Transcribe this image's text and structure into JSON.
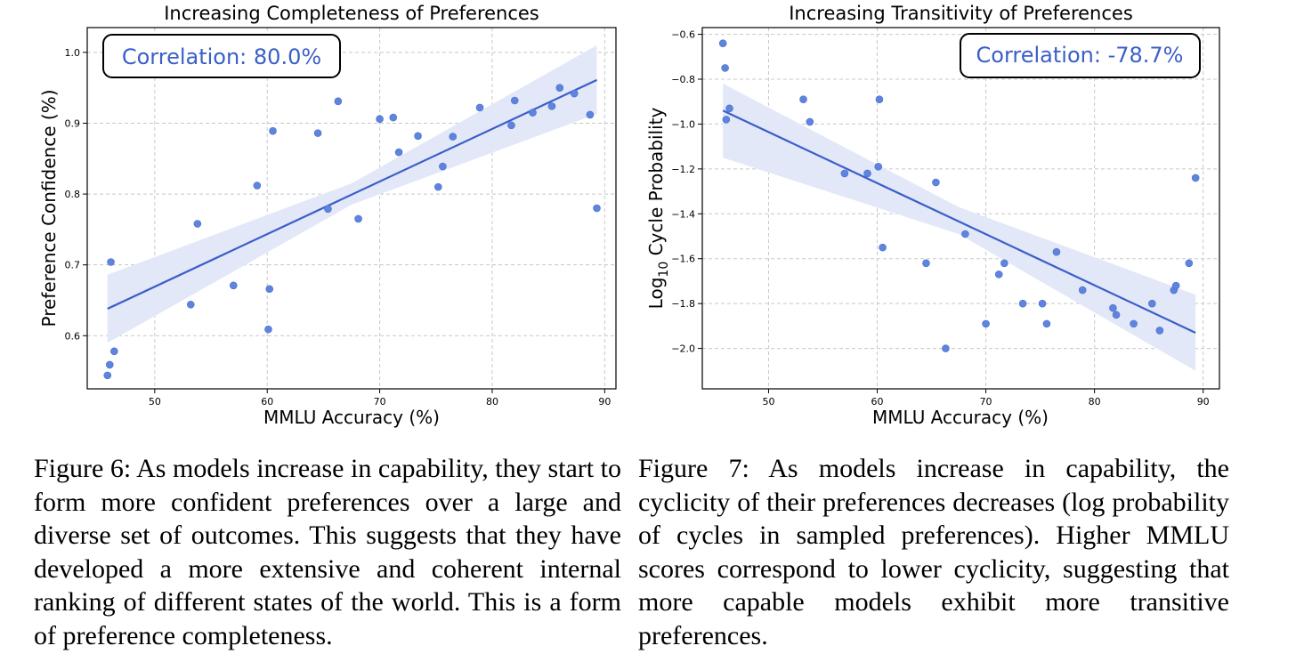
{
  "chart_data": [
    {
      "type": "scatter",
      "title": "Increasing Completeness of Preferences",
      "xlabel": "MMLU Accuracy (%)",
      "ylabel": "Preference Confidence (%)",
      "annotation": "Correlation: 80.0%",
      "xlim": [
        44,
        91
      ],
      "ylim": [
        0.525,
        1.035
      ],
      "xticks": [
        50,
        60,
        70,
        80,
        90
      ],
      "yticks": [
        0.6,
        0.7,
        0.8,
        0.9,
        1.0
      ],
      "xtick_labels": [
        "50",
        "60",
        "70",
        "80",
        "90"
      ],
      "ytick_labels": [
        "0.6",
        "0.7",
        "0.8",
        "0.9",
        "1.0"
      ],
      "grid": true,
      "points": [
        {
          "x": 45.8,
          "y": 0.544
        },
        {
          "x": 46.0,
          "y": 0.559
        },
        {
          "x": 46.4,
          "y": 0.578
        },
        {
          "x": 46.1,
          "y": 0.704
        },
        {
          "x": 53.2,
          "y": 0.644
        },
        {
          "x": 53.8,
          "y": 0.758
        },
        {
          "x": 57.0,
          "y": 0.671
        },
        {
          "x": 59.1,
          "y": 0.812
        },
        {
          "x": 60.1,
          "y": 0.609
        },
        {
          "x": 60.2,
          "y": 0.666
        },
        {
          "x": 60.5,
          "y": 0.889
        },
        {
          "x": 64.5,
          "y": 0.886
        },
        {
          "x": 65.4,
          "y": 0.779
        },
        {
          "x": 66.3,
          "y": 0.931
        },
        {
          "x": 68.1,
          "y": 0.765
        },
        {
          "x": 70.0,
          "y": 0.906
        },
        {
          "x": 71.2,
          "y": 0.908
        },
        {
          "x": 71.7,
          "y": 0.859
        },
        {
          "x": 73.4,
          "y": 0.882
        },
        {
          "x": 75.2,
          "y": 0.81
        },
        {
          "x": 75.6,
          "y": 0.839
        },
        {
          "x": 76.5,
          "y": 0.881
        },
        {
          "x": 78.9,
          "y": 0.922
        },
        {
          "x": 81.7,
          "y": 0.897
        },
        {
          "x": 82.0,
          "y": 0.932
        },
        {
          "x": 83.6,
          "y": 0.915
        },
        {
          "x": 85.3,
          "y": 0.924
        },
        {
          "x": 86.0,
          "y": 0.95
        },
        {
          "x": 87.3,
          "y": 0.942
        },
        {
          "x": 88.7,
          "y": 0.912
        },
        {
          "x": 89.3,
          "y": 0.78
        }
      ],
      "fit": {
        "x0": 45.8,
        "y0": 0.638,
        "x1": 89.3,
        "y1": 0.961
      },
      "band": {
        "x0": 45.8,
        "lo0": 0.59,
        "hi0": 0.686,
        "xm": 67.5,
        "lom": 0.785,
        "him": 0.815,
        "x1": 89.3,
        "lo1": 0.913,
        "hi1": 1.01
      },
      "point_color": "#5e84dc",
      "line_color": "#3a5fc8",
      "band_color": "#e3e8f8",
      "annotation_color": "#3a5fc8"
    },
    {
      "type": "scatter",
      "title": "Increasing Transitivity of Preferences",
      "xlabel": "MMLU Accuracy (%)",
      "ylabel": "Log10 Cycle Probability",
      "ylabel_main": "Log",
      "ylabel_sub": "10",
      "ylabel_rest": " Cycle Probability",
      "annotation": "Correlation: -78.7%",
      "xlim": [
        43.9,
        91.5
      ],
      "ylim": [
        -2.18,
        -0.57
      ],
      "xticks": [
        50,
        60,
        70,
        80,
        90
      ],
      "yticks": [
        -2.0,
        -1.8,
        -1.6,
        -1.4,
        -1.2,
        -1.0,
        -0.8,
        -0.6
      ],
      "xtick_labels": [
        "50",
        "60",
        "70",
        "80",
        "90"
      ],
      "ytick_labels": [
        "−2.0",
        "−1.8",
        "−1.6",
        "−1.4",
        "−1.2",
        "−1.0",
        "−0.8",
        "−0.6"
      ],
      "grid": true,
      "points": [
        {
          "x": 45.8,
          "y": -0.64
        },
        {
          "x": 46.0,
          "y": -0.75
        },
        {
          "x": 46.4,
          "y": -0.93
        },
        {
          "x": 46.1,
          "y": -0.98
        },
        {
          "x": 53.2,
          "y": -0.89
        },
        {
          "x": 53.8,
          "y": -0.99
        },
        {
          "x": 57.0,
          "y": -1.22
        },
        {
          "x": 59.1,
          "y": -1.22
        },
        {
          "x": 60.1,
          "y": -1.19
        },
        {
          "x": 60.2,
          "y": -0.89
        },
        {
          "x": 60.5,
          "y": -1.55
        },
        {
          "x": 64.5,
          "y": -1.62
        },
        {
          "x": 65.4,
          "y": -1.26
        },
        {
          "x": 66.3,
          "y": -2.0
        },
        {
          "x": 68.1,
          "y": -1.49
        },
        {
          "x": 70.0,
          "y": -1.89
        },
        {
          "x": 71.2,
          "y": -1.67
        },
        {
          "x": 71.7,
          "y": -1.62
        },
        {
          "x": 73.4,
          "y": -1.8
        },
        {
          "x": 75.2,
          "y": -1.8
        },
        {
          "x": 75.6,
          "y": -1.89
        },
        {
          "x": 76.5,
          "y": -1.57
        },
        {
          "x": 78.9,
          "y": -1.74
        },
        {
          "x": 81.7,
          "y": -1.82
        },
        {
          "x": 82.0,
          "y": -1.85
        },
        {
          "x": 83.6,
          "y": -1.89
        },
        {
          "x": 85.3,
          "y": -1.8
        },
        {
          "x": 86.0,
          "y": -1.92
        },
        {
          "x": 87.3,
          "y": -1.74
        },
        {
          "x": 87.5,
          "y": -1.72
        },
        {
          "x": 88.7,
          "y": -1.62
        },
        {
          "x": 89.3,
          "y": -1.24
        }
      ],
      "fit": {
        "x0": 45.8,
        "y0": -0.94,
        "x1": 89.3,
        "y1": -1.93
      },
      "band": {
        "x0": 45.8,
        "lo0": -1.15,
        "hi0": -0.82,
        "xm": 67.5,
        "lom": -1.49,
        "him": -1.37,
        "x1": 89.3,
        "lo1": -2.1,
        "hi1": -1.76
      },
      "point_color": "#5e84dc",
      "line_color": "#3a5fc8",
      "band_color": "#e3e8f8",
      "annotation_color": "#3a5fc8"
    }
  ],
  "captions": {
    "fig6": "Figure 6: As models increase in capability, they start to form more confident preferences over a large and diverse set of outcomes. This suggests that they have developed a more extensive and coherent internal ranking of different states of the world. This is a form of preference completeness.",
    "fig7": "Figure 7: As models increase in capability, the cyclicity of their preferences decreases (log probability of cycles in sampled preferences). Higher MMLU scores correspond to lower cyclicity, suggesting that more capable models exhibit more transitive preferences."
  }
}
